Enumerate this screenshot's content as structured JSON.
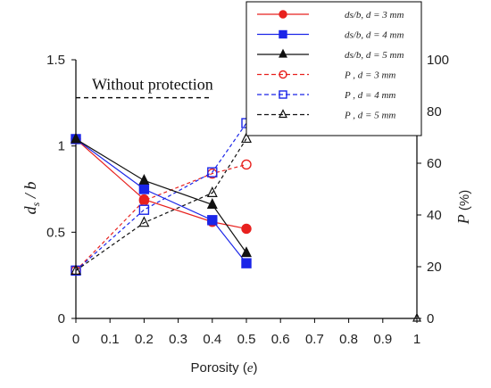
{
  "chart_data": {
    "type": "line",
    "xlabel": "Porosity (e)",
    "ylabel_left": "ds / b",
    "ylabel_right": "P (%)",
    "xlim": [
      0,
      1
    ],
    "ylim_left": [
      0,
      1.5
    ],
    "ylim_right": [
      0,
      100
    ],
    "x_ticks": [
      "0",
      "0.1",
      "0.2",
      "0.3",
      "0.4",
      "0.5",
      "0.6",
      "0.7",
      "0.8",
      "0.9",
      "1"
    ],
    "y_left_ticks": [
      "0",
      "0.5",
      "1",
      "1.5"
    ],
    "y_right_ticks": [
      "0",
      "20",
      "40",
      "60",
      "80",
      "100"
    ],
    "reference_line": {
      "label": "Without protection",
      "value": 1.28,
      "x_range": [
        0,
        0.4
      ]
    },
    "series": [
      {
        "name": "ds/b, d = 3 mm",
        "axis": "left",
        "color": "#e8211e",
        "dash": false,
        "marker": "circle-filled",
        "x": [
          0,
          0.2,
          0.4,
          0.5
        ],
        "y": [
          1.04,
          0.69,
          0.56,
          0.52
        ]
      },
      {
        "name": "ds/b, d = 4 mm",
        "axis": "left",
        "color": "#1a25e8",
        "dash": false,
        "marker": "square-filled",
        "x": [
          0,
          0.2,
          0.4,
          0.5
        ],
        "y": [
          1.04,
          0.75,
          0.57,
          0.32
        ]
      },
      {
        "name": "ds/b, d = 5 mm",
        "axis": "left",
        "color": "#111111",
        "dash": false,
        "marker": "triangle-filled",
        "x": [
          0,
          0.2,
          0.4,
          0.5
        ],
        "y": [
          1.04,
          0.8,
          0.66,
          0.38
        ]
      },
      {
        "name": "P , d = 3 mm",
        "axis": "right",
        "color": "#e8211e",
        "dash": true,
        "marker": "circle-open",
        "x": [
          0,
          0.2,
          0.4,
          0.5
        ],
        "y": [
          18.5,
          45.5,
          56,
          59.5
        ]
      },
      {
        "name": "P , d = 4 mm",
        "axis": "right",
        "color": "#1a25e8",
        "dash": true,
        "marker": "square-open",
        "x": [
          0,
          0.2,
          0.4,
          0.5
        ],
        "y": [
          18.5,
          42,
          56.5,
          75.5
        ]
      },
      {
        "name": "P , d = 5 mm",
        "axis": "right",
        "color": "#111111",
        "dash": true,
        "marker": "triangle-open",
        "x": [
          0,
          0.2,
          0.4,
          0.5
        ],
        "y": [
          18.5,
          37,
          48.5,
          69.5
        ]
      }
    ],
    "extra_points": [
      {
        "axis": "right",
        "x": 1,
        "y": 0,
        "marker": "triangle-open",
        "color": "#111111"
      }
    ],
    "legend_position": "top-right",
    "grid": false
  }
}
